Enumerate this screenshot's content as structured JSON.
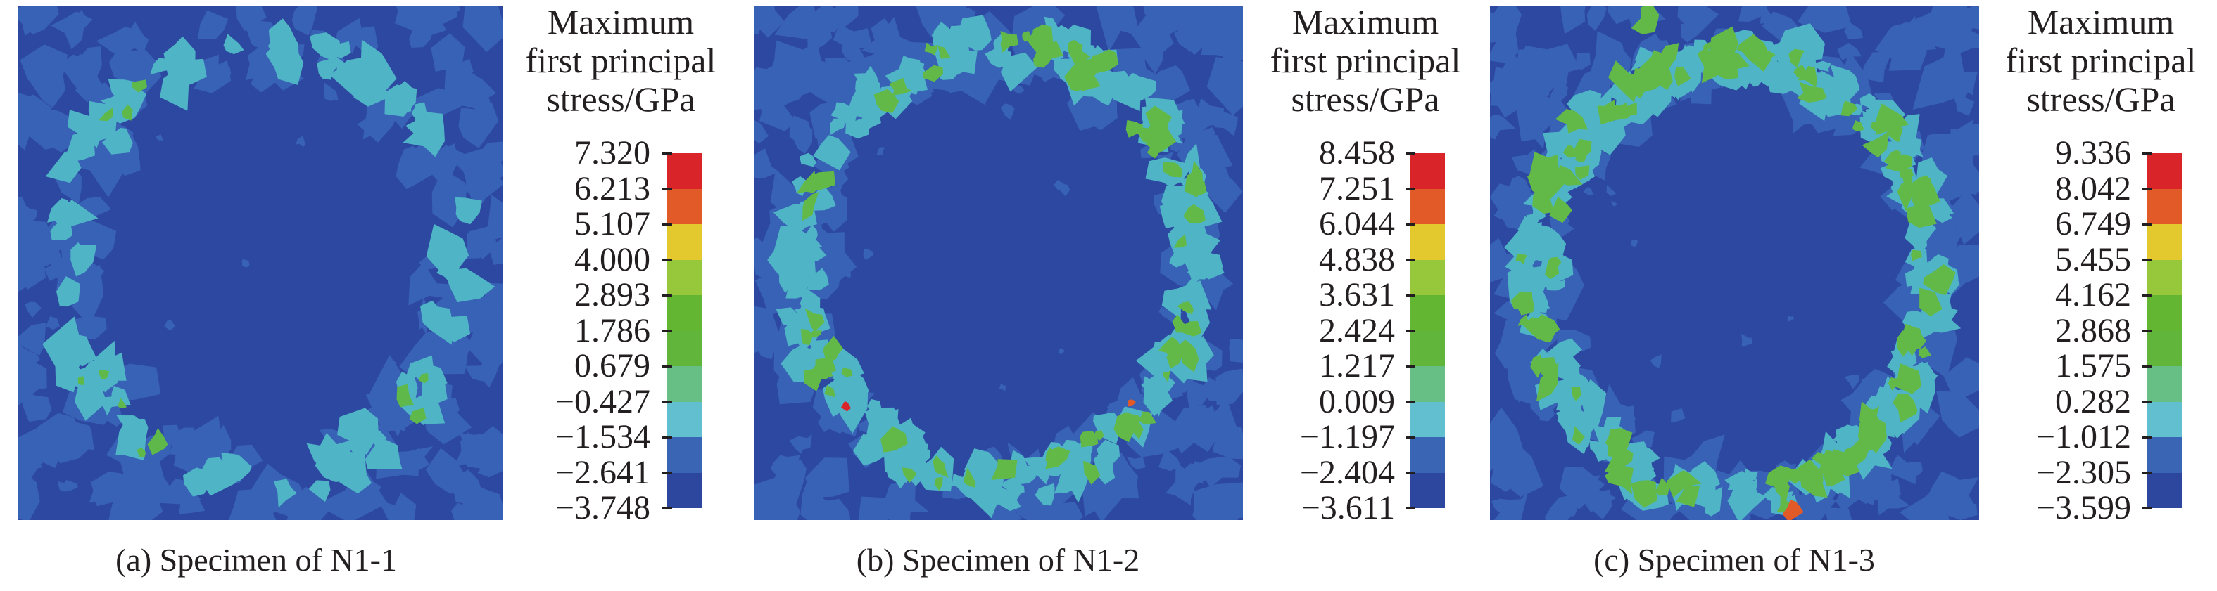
{
  "chart_data": [
    {
      "type": "heatmap",
      "caption": "(a) Specimen of N1-1",
      "colorbar": {
        "title": [
          "Maximum",
          "first principal",
          "stress/GPa"
        ],
        "levels": [
          "7.320",
          "6.213",
          "5.107",
          "4.000",
          "2.893",
          "1.786",
          "0.679",
          "−0.427",
          "−1.534",
          "−2.641",
          "−3.748"
        ],
        "colors": [
          "#d9252a",
          "#e15a28",
          "#e3c92e",
          "#97c83b",
          "#63b632",
          "#60b53a",
          "#67bf86",
          "#61bfd0",
          "#3a64b4",
          "#2e479e"
        ]
      }
    },
    {
      "type": "heatmap",
      "caption": "(b) Specimen of N1-2",
      "colorbar": {
        "title": [
          "Maximum",
          "first principal",
          "stress/GPa"
        ],
        "levels": [
          "8.458",
          "7.251",
          "6.044",
          "4.838",
          "3.631",
          "2.424",
          "1.217",
          "0.009",
          "−1.197",
          "−2.404",
          "−3.611"
        ],
        "colors": [
          "#d9252a",
          "#e15a28",
          "#e3c92e",
          "#97c83b",
          "#63b632",
          "#60b53a",
          "#67bf86",
          "#61bfd0",
          "#3a64b4",
          "#2e479e"
        ]
      }
    },
    {
      "type": "heatmap",
      "caption": "(c) Specimen of N1-3",
      "colorbar": {
        "title": [
          "Maximum",
          "first principal",
          "stress/GPa"
        ],
        "levels": [
          "9.336",
          "8.042",
          "6.749",
          "5.455",
          "4.162",
          "2.868",
          "1.575",
          "0.282",
          "−1.012",
          "−2.305",
          "−3.599"
        ],
        "colors": [
          "#d9252a",
          "#e15a28",
          "#e3c92e",
          "#97c83b",
          "#63b632",
          "#60b53a",
          "#67bf86",
          "#61bfd0",
          "#3a64b4",
          "#2e479e"
        ]
      }
    }
  ]
}
